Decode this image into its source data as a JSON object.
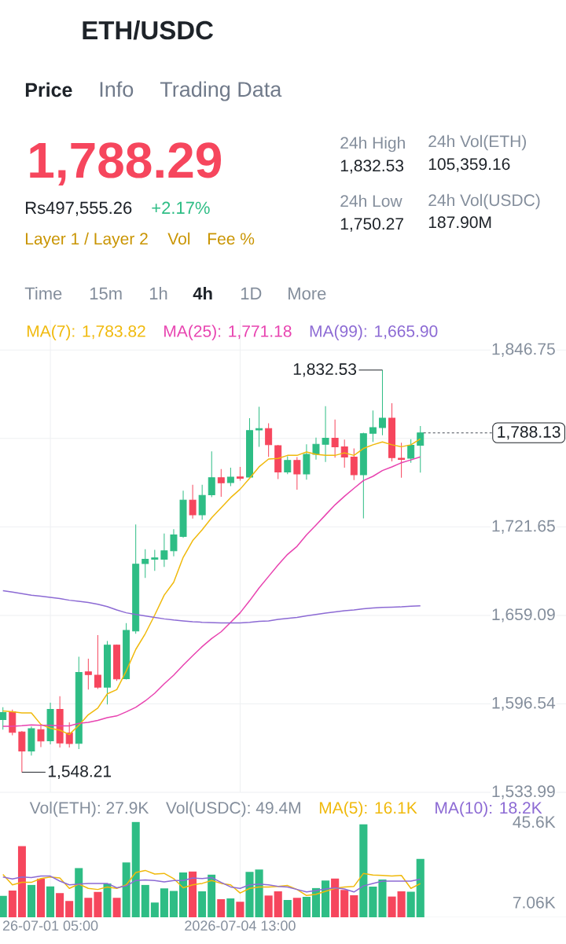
{
  "chart_data": [
    {
      "type": "candlestick",
      "title": "ETH/USDC",
      "annotations": [
        "Price",
        "Info",
        "Trading Data",
        "1,788.29",
        "Rs497,555.26",
        "+2.17%",
        "Layer 1 / Layer 2",
        "Vol",
        "Fee %",
        "24h High",
        "1,832.53",
        "24h Vol(ETH)",
        "105,359.16",
        "24h Low",
        "1,750.27",
        "24h Vol(USDC)",
        "187.90M",
        "Time",
        "15m",
        "1h",
        "4h",
        "1D",
        "More",
        {
          "text": "1,832.53",
          "x": "2026-07-07T01:00",
          "y": 1832.53
        },
        {
          "text": "1,548.21",
          "x": "2026-06-30T17:00",
          "y": 1548.21
        }
      ],
      "x": [
        "2026-06-30T09:00",
        "2026-06-30T13:00",
        "2026-06-30T17:00",
        "2026-06-30T21:00",
        "2026-07-01T01:00",
        "2026-07-01T05:00",
        "2026-07-01T09:00",
        "2026-07-01T13:00",
        "2026-07-01T17:00",
        "2026-07-01T21:00",
        "2026-07-02T01:00",
        "2026-07-02T05:00",
        "2026-07-02T09:00",
        "2026-07-02T13:00",
        "2026-07-02T17:00",
        "2026-07-02T21:00",
        "2026-07-03T01:00",
        "2026-07-03T05:00",
        "2026-07-03T09:00",
        "2026-07-03T13:00",
        "2026-07-03T17:00",
        "2026-07-03T21:00",
        "2026-07-04T01:00",
        "2026-07-04T05:00",
        "2026-07-04T09:00",
        "2026-07-04T13:00",
        "2026-07-04T17:00",
        "2026-07-04T21:00",
        "2026-07-05T01:00",
        "2026-07-05T05:00",
        "2026-07-05T09:00",
        "2026-07-05T13:00",
        "2026-07-05T17:00",
        "2026-07-05T21:00",
        "2026-07-06T01:00",
        "2026-07-06T05:00",
        "2026-07-06T09:00",
        "2026-07-06T13:00",
        "2026-07-06T17:00",
        "2026-07-06T21:00",
        "2026-07-07T01:00",
        "2026-07-07T05:00",
        "2026-07-07T09:00",
        "2026-07-07T13:00",
        "2026-07-07T17:00"
      ],
      "ohlc": [
        [
          1585.4,
          1594.1,
          1578.3,
          1590.4
        ],
        [
          1590.9,
          1592.5,
          1574.3,
          1576.3
        ],
        [
          1576.7,
          1577.3,
          1548.21,
          1563.1
        ],
        [
          1563.1,
          1580.6,
          1560.0,
          1579.0
        ],
        [
          1578.3,
          1581.0,
          1566.0,
          1570.2
        ],
        [
          1570.4,
          1597.4,
          1567.9,
          1592.6
        ],
        [
          1592.6,
          1601.9,
          1565.7,
          1568.8
        ],
        [
          1575.9,
          1583.4,
          1565.7,
          1568.5
        ],
        [
          1568.6,
          1629.9,
          1564.5,
          1618.8
        ],
        [
          1619.2,
          1628.5,
          1606.6,
          1617.2
        ],
        [
          1616.8,
          1645.1,
          1607.0,
          1608.3
        ],
        [
          1608.3,
          1641.0,
          1596.1,
          1638.0
        ],
        [
          1638.0,
          1638.4,
          1612.7,
          1614.1
        ],
        [
          1614.3,
          1653.6,
          1613.7,
          1648.5
        ],
        [
          1648.1,
          1723.4,
          1646.1,
          1695.3
        ],
        [
          1695.7,
          1705.8,
          1685.6,
          1698.7
        ],
        [
          1698.7,
          1705.4,
          1690.6,
          1699.7
        ],
        [
          1698.7,
          1717.0,
          1693.3,
          1704.8
        ],
        [
          1704.8,
          1720.0,
          1700.8,
          1716.0
        ],
        [
          1714.9,
          1747.3,
          1713.9,
          1740.6
        ],
        [
          1740.6,
          1751.4,
          1727.5,
          1730.1
        ],
        [
          1730.1,
          1751.4,
          1726.7,
          1743.9
        ],
        [
          1744.3,
          1775.0,
          1742.7,
          1756.4
        ],
        [
          1756.4,
          1762.5,
          1742.9,
          1752.8
        ],
        [
          1753.0,
          1763.5,
          1750.4,
          1756.8
        ],
        [
          1757.0,
          1764.1,
          1754.4,
          1756.0
        ],
        [
          1756.8,
          1798.5,
          1756.4,
          1789.8
        ],
        [
          1790.2,
          1806.6,
          1778.3,
          1791.2
        ],
        [
          1791.2,
          1794.9,
          1771.2,
          1779.7
        ],
        [
          1779.1,
          1779.6,
          1755.4,
          1760.5
        ],
        [
          1760.5,
          1771.6,
          1758.9,
          1768.6
        ],
        [
          1768.6,
          1771.0,
          1747.9,
          1759.1
        ],
        [
          1759.1,
          1780.1,
          1755.0,
          1773.0
        ],
        [
          1773.0,
          1784.8,
          1769.2,
          1780.1
        ],
        [
          1780.1,
          1807.0,
          1767.6,
          1784.4
        ],
        [
          1784.4,
          1797.5,
          1770.6,
          1778.3
        ],
        [
          1778.3,
          1783.4,
          1763.5,
          1771.0
        ],
        [
          1771.0,
          1777.1,
          1754.8,
          1758.5
        ],
        [
          1758.5,
          1788.2,
          1727.7,
          1787.6
        ],
        [
          1787.8,
          1804.0,
          1781.7,
          1791.9
        ],
        [
          1791.9,
          1832.53,
          1786.4,
          1798.5
        ],
        [
          1798.5,
          1809.1,
          1768.0,
          1770.6
        ],
        [
          1770.2,
          1781.1,
          1756.4,
          1769.4
        ],
        [
          1770.2,
          1783.7,
          1767.0,
          1779.3
        ],
        [
          1779.3,
          1792.9,
          1760.1,
          1788.13
        ]
      ],
      "colors": [
        "#2ebd85",
        "#f6465d",
        "#f6465d",
        "#2ebd85",
        "#f6465d",
        "#2ebd85",
        "#f6465d",
        "#f6465d",
        "#2ebd85",
        "#f6465d",
        "#f6465d",
        "#2ebd85",
        "#f6465d",
        "#2ebd85",
        "#2ebd85",
        "#2ebd85",
        "#2ebd85",
        "#2ebd85",
        "#2ebd85",
        "#2ebd85",
        "#f6465d",
        "#2ebd85",
        "#2ebd85",
        "#f6465d",
        "#2ebd85",
        "#f6465d",
        "#2ebd85",
        "#2ebd85",
        "#f6465d",
        "#f6465d",
        "#2ebd85",
        "#f6465d",
        "#2ebd85",
        "#2ebd85",
        "#2ebd85",
        "#f6465d",
        "#f6465d",
        "#f6465d",
        "#2ebd85",
        "#2ebd85",
        "#2ebd85",
        "#f6465d",
        "#f6465d",
        "#2ebd85",
        "#2ebd85"
      ],
      "series": [
        {
          "name": "MA(7): 1,783.82",
          "type": "line",
          "color": "#f0b90b",
          "values": [
            1591.5,
            1590.9,
            1590.1,
            1590.1,
            1582.0,
            1579.3,
            1577.9,
            1574.9,
            1581.4,
            1588.8,
            1593.5,
            1603.6,
            1606.6,
            1619.8,
            1635.0,
            1646.1,
            1659.3,
            1673.4,
            1682.5,
            1700.1,
            1711.9,
            1719.6,
            1728.1,
            1735.2,
            1742.3,
            1748.3,
            1756.0,
            1764.1,
            1769.6,
            1770.0,
            1772.2,
            1772.2,
            1774.6,
            1773.0,
            1772.2,
            1772.2,
            1774.0,
            1772.2,
            1777.1,
            1779.7,
            1781.7,
            1779.7,
            1778.3,
            1779.7,
            1783.82
          ]
        },
        {
          "name": "MA(25): 1,771.18",
          "type": "line",
          "color": "#e843b0",
          "values": [
            1580.7,
            1580.7,
            1581.1,
            1581.7,
            1581.4,
            1581.4,
            1581.0,
            1581.0,
            1582.8,
            1583.4,
            1584.8,
            1586.8,
            1588.0,
            1590.9,
            1594.1,
            1598.6,
            1604.0,
            1610.7,
            1616.8,
            1623.9,
            1630.5,
            1637.0,
            1642.7,
            1647.5,
            1654.2,
            1660.9,
            1669.4,
            1678.5,
            1686.6,
            1694.7,
            1702.2,
            1707.9,
            1716.0,
            1723.0,
            1730.1,
            1737.2,
            1743.3,
            1748.9,
            1754.4,
            1757.4,
            1761.5,
            1764.1,
            1767.0,
            1769.0,
            1771.18
          ]
        },
        {
          "name": "MA(99): 1,665.90",
          "type": "line",
          "color": "#8c6ad4",
          "values": [
            1676.5,
            1675.5,
            1674.5,
            1673.4,
            1672.6,
            1671.8,
            1671.0,
            1669.8,
            1669.0,
            1668.2,
            1667.0,
            1665.3,
            1662.9,
            1660.9,
            1659.7,
            1658.7,
            1657.7,
            1656.6,
            1655.8,
            1655.2,
            1654.6,
            1654.2,
            1654.0,
            1653.8,
            1653.8,
            1653.8,
            1654.2,
            1654.8,
            1655.2,
            1656.2,
            1657.0,
            1657.7,
            1658.7,
            1659.7,
            1660.7,
            1661.5,
            1662.3,
            1662.9,
            1663.7,
            1664.3,
            1664.7,
            1664.9,
            1665.1,
            1665.5,
            1665.9
          ]
        }
      ],
      "xlim": [
        "2026-06-30T07:46",
        "2026-07-10T06:24"
      ],
      "xticks": [
        {
          "value": "2026-07-01T05:00",
          "label": null
        },
        {
          "value": "2026-07-04T13:00",
          "label": null
        }
      ],
      "ylim": [
        1533.99,
        1868
      ],
      "yticks": [
        {
          "value": 1533.99,
          "label": "1,533.99"
        },
        {
          "value": 1596.54,
          "label": "1,596.54"
        },
        {
          "value": 1659.09,
          "label": "1,659.09"
        },
        {
          "value": 1721.65,
          "label": "1,721.65"
        },
        {
          "value": 1784.2,
          "label": null
        },
        {
          "value": 1846.75,
          "label": "1,846.75"
        }
      ],
      "ref_lines": [
        {
          "axis": "y",
          "value": 1788.13,
          "label": "1,788.13",
          "line_style": "dashed",
          "color": "#474d57"
        }
      ],
      "grid": true,
      "legend": "top left",
      "tick_labels": "y"
    },
    {
      "type": "bar",
      "annotations": [
        "Vol(ETH): 27.9K",
        "Vol(USDC): 49.4M"
      ],
      "x": [
        "2026-06-30T09:00",
        "2026-06-30T13:00",
        "2026-06-30T17:00",
        "2026-06-30T21:00",
        "2026-07-01T01:00",
        "2026-07-01T05:00",
        "2026-07-01T09:00",
        "2026-07-01T13:00",
        "2026-07-01T17:00",
        "2026-07-01T21:00",
        "2026-07-02T01:00",
        "2026-07-02T05:00",
        "2026-07-02T09:00",
        "2026-07-02T13:00",
        "2026-07-02T17:00",
        "2026-07-02T21:00",
        "2026-07-03T01:00",
        "2026-07-03T05:00",
        "2026-07-03T09:00",
        "2026-07-03T13:00",
        "2026-07-03T17:00",
        "2026-07-03T21:00",
        "2026-07-04T01:00",
        "2026-07-04T05:00",
        "2026-07-04T09:00",
        "2026-07-04T13:00",
        "2026-07-04T17:00",
        "2026-07-04T21:00",
        "2026-07-05T01:00",
        "2026-07-05T05:00",
        "2026-07-05T09:00",
        "2026-07-05T13:00",
        "2026-07-05T17:00",
        "2026-07-05T21:00",
        "2026-07-06T01:00",
        "2026-07-06T05:00",
        "2026-07-06T09:00",
        "2026-07-06T13:00",
        "2026-07-06T17:00",
        "2026-07-06T21:00",
        "2026-07-07T01:00",
        "2026-07-07T05:00",
        "2026-07-07T09:00",
        "2026-07-07T13:00",
        "2026-07-07T17:00"
      ],
      "series": [
        {
          "type": "bar",
          "colors": [
            "#2ebd85",
            "#f6465d",
            "#f6465d",
            "#2ebd85",
            "#f6465d",
            "#2ebd85",
            "#f6465d",
            "#f6465d",
            "#2ebd85",
            "#f6465d",
            "#f6465d",
            "#2ebd85",
            "#f6465d",
            "#2ebd85",
            "#2ebd85",
            "#2ebd85",
            "#2ebd85",
            "#2ebd85",
            "#2ebd85",
            "#2ebd85",
            "#f6465d",
            "#2ebd85",
            "#2ebd85",
            "#f6465d",
            "#2ebd85",
            "#f6465d",
            "#2ebd85",
            "#2ebd85",
            "#f6465d",
            "#f6465d",
            "#2ebd85",
            "#f6465d",
            "#2ebd85",
            "#2ebd85",
            "#2ebd85",
            "#f6465d",
            "#f6465d",
            "#f6465d",
            "#2ebd85",
            "#2ebd85",
            "#2ebd85",
            "#f6465d",
            "#f6465d",
            "#2ebd85",
            "#2ebd85"
          ],
          "values": [
            10.2,
            12.8,
            34.0,
            15.5,
            18.5,
            14.8,
            11.6,
            7.8,
            23.6,
            9.3,
            12.1,
            16.2,
            9.3,
            26.2,
            45.6,
            15.5,
            7.06,
            13.8,
            12.6,
            21.4,
            21.9,
            12.4,
            20.4,
            8.6,
            9.0,
            7.4,
            21.7,
            22.8,
            10.4,
            12.4,
            8.3,
            9.3,
            9.8,
            14.0,
            17.6,
            18.6,
            13.1,
            10.5,
            44.5,
            14.7,
            18.1,
            10.0,
            12.4,
            12.2,
            27.9
          ]
        },
        {
          "name": "MA(5): 16.1K",
          "type": "line",
          "color": "#f0b90b",
          "values": [
            20.5,
            15.5,
            16.7,
            16.7,
            18.5,
            19.3,
            18.8,
            13.8,
            15.9,
            13.8,
            13.3,
            14.5,
            13.8,
            15.5,
            21.4,
            22.4,
            20.7,
            21.0,
            18.5,
            14.1,
            15.5,
            16.2,
            17.6,
            16.2,
            15.5,
            11.6,
            13.8,
            14.5,
            14.5,
            14.8,
            15.2,
            13.3,
            10.4,
            11.0,
            12.4,
            13.8,
            14.5,
            14.8,
            21.0,
            20.2,
            20.0,
            19.7,
            20.0,
            13.8,
            16.1
          ]
        },
        {
          "name": "MA(10): 18.2K",
          "type": "line",
          "color": "#8c6ad4",
          "values": [
            19.3,
            18.3,
            19.3,
            19.0,
            19.7,
            19.7,
            17.3,
            15.5,
            15.9,
            16.2,
            16.2,
            16.2,
            14.1,
            15.0,
            17.6,
            17.9,
            17.6,
            16.9,
            17.6,
            17.6,
            18.8,
            18.5,
            19.0,
            16.7,
            14.5,
            13.8,
            15.5,
            15.9,
            15.5,
            14.8,
            14.5,
            13.3,
            12.1,
            12.8,
            13.5,
            14.1,
            13.5,
            12.1,
            15.0,
            16.2,
            17.3,
            17.3,
            17.3,
            17.3,
            18.2
          ]
        }
      ],
      "xlim": [
        "2026-06-30T07:46",
        "2026-07-10T06:24"
      ],
      "xticks": [
        {
          "value": "2026-07-01T05:00",
          "label": "26-07-01 05:00"
        },
        {
          "value": "2026-07-04T13:00",
          "label": "2026-07-04 13:00"
        }
      ],
      "ylim": [
        0,
        50
      ],
      "yticks": [
        {
          "value": 45.6,
          "label": "45.6K"
        },
        {
          "value": 7.06,
          "label": "7.06K"
        }
      ],
      "grid": "x",
      "legend": "top right"
    }
  ]
}
